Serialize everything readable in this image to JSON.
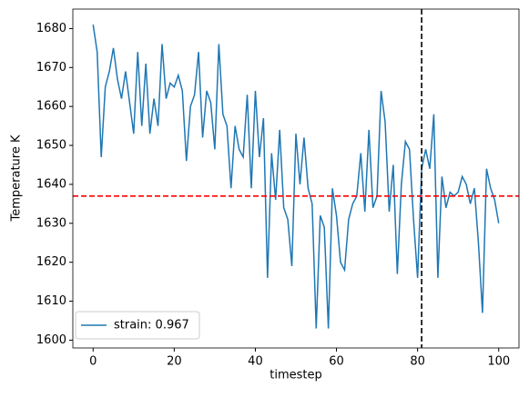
{
  "chart_data": {
    "type": "line",
    "xlabel": "timestep",
    "ylabel": "Temperature K",
    "x": [
      0,
      1,
      2,
      3,
      4,
      5,
      6,
      7,
      8,
      9,
      10,
      11,
      12,
      13,
      14,
      15,
      16,
      17,
      18,
      19,
      20,
      21,
      22,
      23,
      24,
      25,
      26,
      27,
      28,
      29,
      30,
      31,
      32,
      33,
      34,
      35,
      36,
      37,
      38,
      39,
      40,
      41,
      42,
      43,
      44,
      45,
      46,
      47,
      48,
      49,
      50,
      51,
      52,
      53,
      54,
      55,
      56,
      57,
      58,
      59,
      60,
      61,
      62,
      63,
      64,
      65,
      66,
      67,
      68,
      69,
      70,
      71,
      72,
      73,
      74,
      75,
      76,
      77,
      78,
      79,
      80,
      81,
      82,
      83,
      84,
      85,
      86,
      87,
      88,
      89,
      90,
      91,
      92,
      93,
      94,
      95,
      96,
      97,
      98,
      99,
      100
    ],
    "series": [
      {
        "name": "strain: 0.967",
        "color": "#1f77b4",
        "values": [
          1681,
          1674,
          1647,
          1665,
          1669,
          1675,
          1667,
          1662,
          1669,
          1661,
          1653,
          1674,
          1655,
          1671,
          1653,
          1662,
          1655,
          1676,
          1662,
          1666,
          1665,
          1668,
          1664,
          1646,
          1660,
          1663,
          1674,
          1652,
          1664,
          1661,
          1649,
          1676,
          1658,
          1655,
          1639,
          1655,
          1649,
          1647,
          1663,
          1639,
          1664,
          1647,
          1657,
          1616,
          1648,
          1636,
          1654,
          1634,
          1631,
          1619,
          1653,
          1640,
          1652,
          1639,
          1635,
          1603,
          1632,
          1629,
          1603,
          1639,
          1632,
          1620,
          1618,
          1631,
          1635,
          1637,
          1648,
          1633,
          1654,
          1634,
          1637,
          1664,
          1656,
          1633,
          1645,
          1617,
          1640,
          1651,
          1649,
          1631,
          1616,
          1644,
          1649,
          1644,
          1658,
          1616,
          1642,
          1634,
          1638,
          1637,
          1638,
          1642,
          1640,
          1635,
          1639,
          1625,
          1607,
          1644,
          1639,
          1636,
          1630
        ]
      }
    ],
    "reference_lines": [
      {
        "axis": "y",
        "value": 1637,
        "color": "#ff0000",
        "style": "dashed"
      },
      {
        "axis": "x",
        "value": 81,
        "color": "#000000",
        "style": "dashed"
      }
    ],
    "xlim": [
      -5,
      105
    ],
    "ylim": [
      1598,
      1685
    ],
    "xticks": [
      0,
      20,
      40,
      60,
      80,
      100
    ],
    "yticks": [
      1600,
      1610,
      1620,
      1630,
      1640,
      1650,
      1660,
      1670,
      1680
    ],
    "legend": "lower left"
  }
}
